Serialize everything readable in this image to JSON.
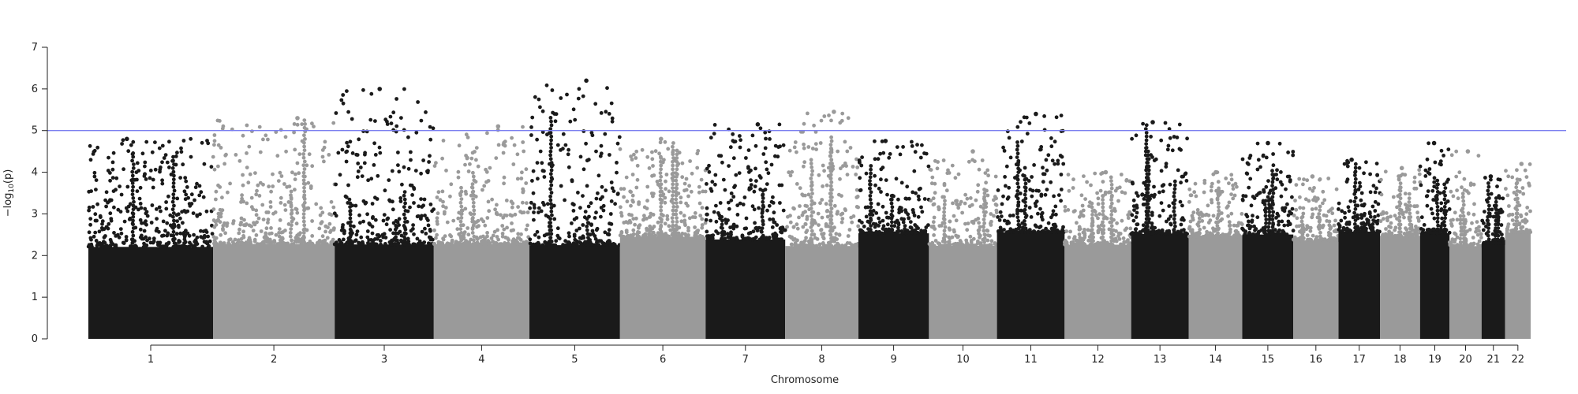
{
  "chart_data": {
    "type": "scatter",
    "title": "",
    "xlabel": "Chromosome",
    "ylabel_prefix": "−log",
    "ylabel_sub": "10",
    "ylabel_suffix": "(p)",
    "ylim": [
      0,
      7
    ],
    "yticks": [
      0,
      1,
      2,
      3,
      4,
      5,
      6,
      7
    ],
    "threshold": 5,
    "threshold_color": "#7b7ff0",
    "colors": [
      "#1a1a1a",
      "#9a9a9a"
    ],
    "chromosomes": [
      {
        "label": "1",
        "peak": 4.8
      },
      {
        "label": "2",
        "peak": 5.3
      },
      {
        "label": "3",
        "peak": 6.0
      },
      {
        "label": "4",
        "peak": 5.1
      },
      {
        "label": "5",
        "peak": 6.2
      },
      {
        "label": "6",
        "peak": 4.8
      },
      {
        "label": "7",
        "peak": 5.15
      },
      {
        "label": "8",
        "peak": 5.45
      },
      {
        "label": "9",
        "peak": 4.75
      },
      {
        "label": "10",
        "peak": 4.5
      },
      {
        "label": "11",
        "peak": 5.4
      },
      {
        "label": "12",
        "peak": 4.0
      },
      {
        "label": "13",
        "peak": 5.2
      },
      {
        "label": "14",
        "peak": 4.0
      },
      {
        "label": "15",
        "peak": 4.7
      },
      {
        "label": "16",
        "peak": 3.9
      },
      {
        "label": "17",
        "peak": 4.3
      },
      {
        "label": "18",
        "peak": 4.1
      },
      {
        "label": "19",
        "peak": 4.7
      },
      {
        "label": "20",
        "peak": 4.5
      },
      {
        "label": "21",
        "peak": 3.9
      },
      {
        "label": "22",
        "peak": 4.2
      }
    ]
  }
}
